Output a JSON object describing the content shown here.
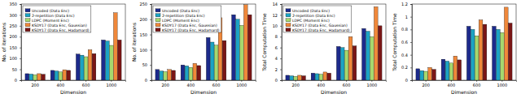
{
  "chart_data": [
    {
      "type": "bar",
      "x_label": "Dimension",
      "y_label": "No. of iterations",
      "categories": [
        "200",
        "400",
        "600",
        "1000"
      ],
      "ylim": [
        0,
        350
      ],
      "yticks": [
        0,
        50,
        100,
        150,
        200,
        250,
        300,
        350
      ],
      "grid": false,
      "legend": "upper left",
      "series": [
        {
          "name": "Uncoded (Data Enc)",
          "color": "#1c2a8c",
          "values": [
            30,
            45,
            120,
            185
          ]
        },
        {
          "name": "2-repetition (Data Enc)",
          "color": "#1ca3c4",
          "values": [
            28,
            42,
            115,
            180
          ]
        },
        {
          "name": "LDPC (Moment Enc)",
          "color": "#a6d86e",
          "values": [
            25,
            38,
            108,
            160
          ]
        },
        {
          "name": "KSDY17 (Data Enc, Gaussian)",
          "color": "#f0883a",
          "values": [
            30,
            48,
            140,
            310
          ]
        },
        {
          "name": "KSDY17 (Data Enc, Hadamard)",
          "color": "#7a1616",
          "values": [
            27,
            45,
            122,
            185
          ]
        }
      ]
    },
    {
      "type": "bar",
      "x_label": "Dimension",
      "y_label": "No. of iterations",
      "categories": [
        "200",
        "400",
        "600",
        "1000"
      ],
      "ylim": [
        0,
        250
      ],
      "yticks": [
        0,
        50,
        100,
        150,
        200,
        250
      ],
      "grid": false,
      "legend": "upper left",
      "series": [
        {
          "name": "Uncoded (Data Enc)",
          "color": "#1c2a8c",
          "values": [
            35,
            50,
            140,
            215
          ]
        },
        {
          "name": "2-repetition (Data Enc)",
          "color": "#1ca3c4",
          "values": [
            30,
            47,
            125,
            200
          ]
        },
        {
          "name": "LDPC (Moment Enc)",
          "color": "#a6d86e",
          "values": [
            28,
            42,
            115,
            180
          ]
        },
        {
          "name": "KSDY17 (Data Enc, Gaussian)",
          "color": "#f0883a",
          "values": [
            35,
            55,
            205,
            248
          ]
        },
        {
          "name": "KSDY17 (Data Enc, Hadamard)",
          "color": "#7a1616",
          "values": [
            32,
            48,
            130,
            215
          ]
        }
      ]
    },
    {
      "type": "bar",
      "x_label": "Dimension",
      "y_label": "Total Computation Time",
      "categories": [
        "200",
        "400",
        "600",
        "1000"
      ],
      "ylim": [
        0,
        14
      ],
      "yticks": [
        0,
        2,
        4,
        6,
        8,
        10,
        12,
        14
      ],
      "grid": false,
      "legend": "upper left",
      "series": [
        {
          "name": "Uncoded (Data Enc)",
          "color": "#1c2a8c",
          "values": [
            0.9,
            1.3,
            6.2,
            9.5
          ]
        },
        {
          "name": "2-repetition (Data Enc)",
          "color": "#1ca3c4",
          "values": [
            0.8,
            1.2,
            6,
            9
          ]
        },
        {
          "name": "LDPC (Moment Enc)",
          "color": "#a6d86e",
          "values": [
            0.7,
            1.1,
            5.5,
            8
          ]
        },
        {
          "name": "KSDY17 (Data Enc, Gaussian)",
          "color": "#f0883a",
          "values": [
            0.9,
            1.5,
            8,
            13.5
          ]
        },
        {
          "name": "KSDY17 (Data Enc, Hadamard)",
          "color": "#7a1616",
          "values": [
            0.8,
            1.3,
            6.3,
            10
          ]
        }
      ]
    },
    {
      "type": "bar",
      "x_label": "Dimension",
      "y_label": "Total Computation Time",
      "categories": [
        "200",
        "400",
        "600",
        "1000"
      ],
      "ylim": [
        0,
        1.2
      ],
      "yticks": [
        0,
        0.2,
        0.4,
        0.6,
        0.8,
        1,
        1.2
      ],
      "grid": false,
      "legend": false,
      "series": [
        {
          "name": "Uncoded (Data Enc)",
          "color": "#1c2a8c",
          "values": [
            0.18,
            0.33,
            0.85,
            0.85
          ]
        },
        {
          "name": "2-repetition (Data Enc)",
          "color": "#1ca3c4",
          "values": [
            0.15,
            0.3,
            0.8,
            0.8
          ]
        },
        {
          "name": "LDPC (Moment Enc)",
          "color": "#a6d86e",
          "values": [
            0.14,
            0.27,
            0.7,
            0.75
          ]
        },
        {
          "name": "KSDY17 (Data Enc, Gaussian)",
          "color": "#f0883a",
          "values": [
            0.2,
            0.38,
            0.95,
            1.15
          ]
        },
        {
          "name": "KSDY17 (Data Enc, Hadamard)",
          "color": "#7a1616",
          "values": [
            0.17,
            0.32,
            0.88,
            0.9
          ]
        }
      ]
    }
  ]
}
